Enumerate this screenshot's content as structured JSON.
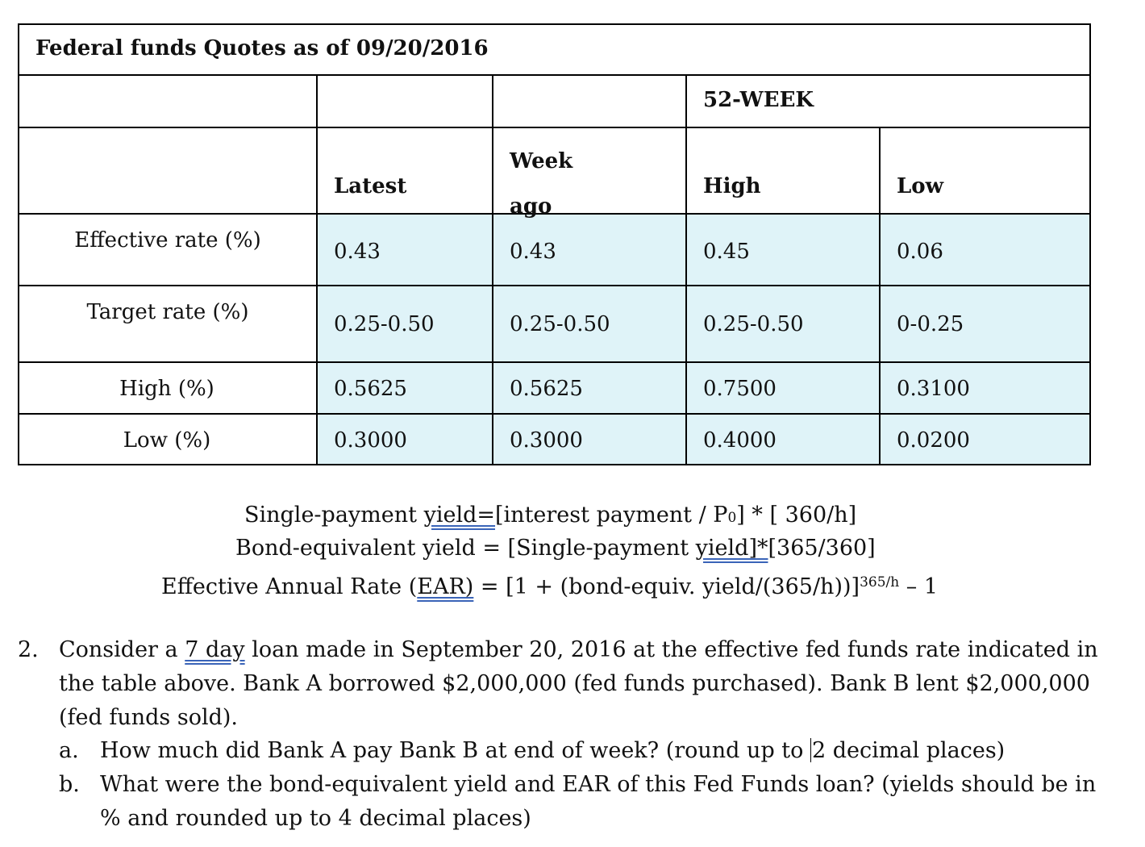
{
  "table": {
    "title": "Federal funds Quotes as of 09/20/2016",
    "group_header": "52-WEEK",
    "columns": [
      "Latest",
      "Week ago",
      "High",
      "Low"
    ],
    "rows": [
      {
        "label": "Effective rate (%)",
        "values": [
          "0.43",
          "0.43",
          "0.45",
          "0.06"
        ]
      },
      {
        "label": "Target rate (%)",
        "values": [
          "0.25-0.50",
          "0.25-0.50",
          "0.25-0.50",
          "0-0.25"
        ]
      },
      {
        "label": "High (%)",
        "values": [
          "0.5625",
          "0.5625",
          "0.7500",
          "0.3100"
        ]
      },
      {
        "label": "Low (%)",
        "values": [
          "0.3000",
          "0.3000",
          "0.4000",
          "0.0200"
        ]
      }
    ]
  },
  "formulas": {
    "line1_a": "Single-payment ",
    "line1_b": "yield=",
    "line1_c": "[interest payment / P",
    "line1_sub": "0",
    "line1_d": "] * [ 360/h]",
    "line2_a": "Bond-equivalent yield = [Single-payment ",
    "line2_b": "yield]*",
    "line2_c": "[365/360]",
    "line3_a": "Effective Annual Rate (",
    "line3_b": "EAR)",
    "line3_c": " = ",
    "line3_d": "[1 + (bond-equiv. yield/(365/h))]",
    "line3_sup": "365/h",
    "line3_e": " – 1"
  },
  "question": {
    "number": "2.",
    "line1_a": "Consider a ",
    "line1_b": "7 day",
    "line1_c": " loan made in September 20, 2016 at the effective fed funds rate indicated in",
    "line2": "the table above. Bank A borrowed $2,000,000 (fed funds purchased). Bank B lent $2,000,000",
    "line3": "(fed funds sold).",
    "a_label": "a.",
    "a_text_1": "How much did Bank A pay Bank B at end of week? (round up to ",
    "a_text_2": "2 decimal places)",
    "b_label": "b.",
    "b_text_1": "What were the bond-equivalent yield and EAR of this Fed Funds loan? (yields should be in",
    "b_text_2": "% and rounded up to 4 decimal places)"
  }
}
